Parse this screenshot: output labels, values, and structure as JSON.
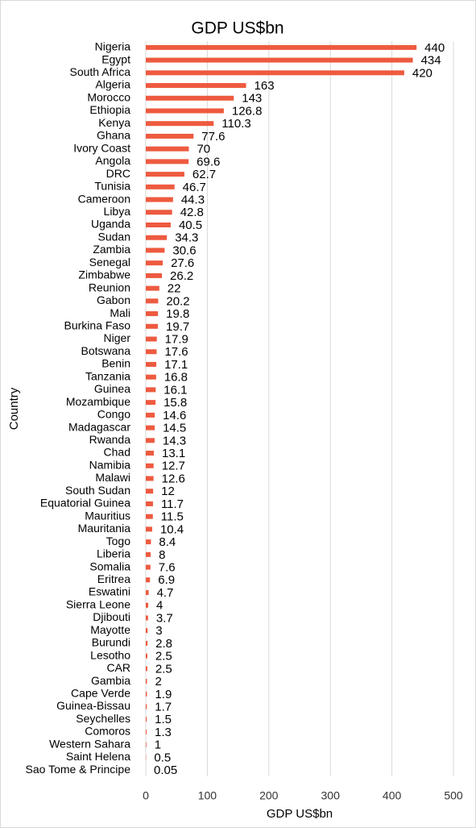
{
  "chart_data": {
    "type": "hbar",
    "title": "GDP US$bn",
    "x_label": "GDP US$bn",
    "y_label": "Country",
    "categories": [
      "Nigeria",
      "Egypt",
      "South Africa",
      "Algeria",
      "Morocco",
      "Ethiopia",
      "Kenya",
      "Ghana",
      "Ivory Coast",
      "Angola",
      "DRC",
      "Tunisia",
      "Cameroon",
      "Libya",
      "Uganda",
      "Sudan",
      "Zambia",
      "Senegal",
      "Zimbabwe",
      "Reunion",
      "Gabon",
      "Mali",
      "Burkina Faso",
      "Niger",
      "Botswana",
      "Benin",
      "Tanzania",
      "Guinea",
      "Mozambique",
      "Congo",
      "Madagascar",
      "Rwanda",
      "Chad",
      "Namibia",
      "Malawi",
      "South Sudan",
      "Equatorial Guinea",
      "Mauritius",
      "Mauritania",
      "Togo",
      "Liberia",
      "Somalia",
      "Eritrea",
      "Eswatini",
      "Sierra Leone",
      "Djibouti",
      "Mayotte",
      "Burundi",
      "Lesotho",
      "CAR",
      "Gambia",
      "Cape Verde",
      "Guinea-Bissau",
      "Seychelles",
      "Comoros",
      "Western Sahara",
      "Saint Helena",
      "Sao Tome & Principe"
    ],
    "values": [
      440,
      434,
      420,
      163,
      143,
      126.8,
      110.3,
      77.6,
      70,
      69.6,
      62.7,
      46.7,
      44.3,
      42.8,
      40.5,
      34.3,
      30.6,
      27.6,
      26.2,
      22,
      20.2,
      19.8,
      19.7,
      17.9,
      17.6,
      17.1,
      16.8,
      16.1,
      15.8,
      14.6,
      14.5,
      14.3,
      13.1,
      12.7,
      12.6,
      12,
      11.7,
      11.5,
      10.4,
      8.4,
      8,
      7.6,
      6.9,
      4.7,
      4,
      3.7,
      3,
      2.8,
      2.5,
      2.5,
      2,
      1.9,
      1.7,
      1.5,
      1.3,
      1,
      0.5,
      0.05
    ],
    "color": "#ee5a3f",
    "xlim": [
      0,
      500
    ],
    "xticks": [
      0,
      100,
      200,
      300,
      400,
      500
    ],
    "grid": true
  }
}
